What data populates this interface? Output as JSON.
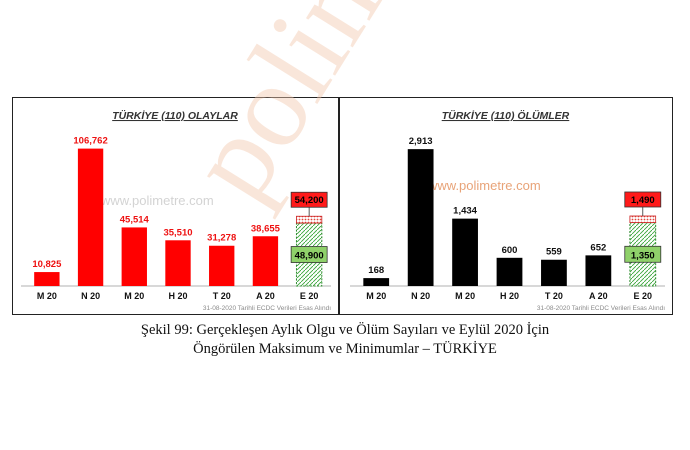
{
  "watermark_text": "polimetre",
  "chart_data": [
    {
      "type": "bar",
      "title": "TÜRKİYE (110) OLAYLAR",
      "color": "#ff0000",
      "label_color": "#ee1111",
      "categories": [
        "M 20",
        "N 20",
        "M 20",
        "H 20",
        "T 20",
        "A 20",
        "E 20"
      ],
      "values": [
        10825,
        106762,
        45514,
        35510,
        31278,
        38655,
        null
      ],
      "value_labels": [
        "10,825",
        "106,762",
        "45,514",
        "35,510",
        "31,278",
        "38,655",
        ""
      ],
      "forecast": {
        "category": "E 20",
        "min": 48900,
        "max": 54200,
        "min_label": "48,900",
        "max_label": "54,200"
      },
      "ylim": [
        0,
        115000
      ],
      "website": "www.polimetre.com",
      "source_note": "31-08-2020 Tarihli ECDC Verileri Esas Alındı",
      "grid": false
    },
    {
      "type": "bar",
      "title": "TÜRKİYE (110) ÖLÜMLER",
      "color": "#000000",
      "label_color": "#111111",
      "categories": [
        "M 20",
        "N 20",
        "M 20",
        "H 20",
        "T 20",
        "A 20",
        "E 20"
      ],
      "values": [
        168,
        2913,
        1434,
        600,
        559,
        652,
        null
      ],
      "value_labels": [
        "168",
        "2,913",
        "1,434",
        "600",
        "559",
        "652",
        ""
      ],
      "forecast": {
        "category": "E 20",
        "min": 1350,
        "max": 1490,
        "min_label": "1,350",
        "max_label": "1,490"
      },
      "ylim": [
        0,
        3150
      ],
      "website": "www.polimetre.com",
      "source_note": "31-08-2020 Tarihli ECDC Verileri Esas Alındı",
      "grid": false
    }
  ],
  "caption": {
    "line1": "Şekil 99: Gerçekleşen Aylık Olgu ve Ölüm Sayıları ve Eylül 2020 İçin",
    "line2": "Öngörülen Maksimum ve Minimumlar – TÜRKİYE"
  }
}
